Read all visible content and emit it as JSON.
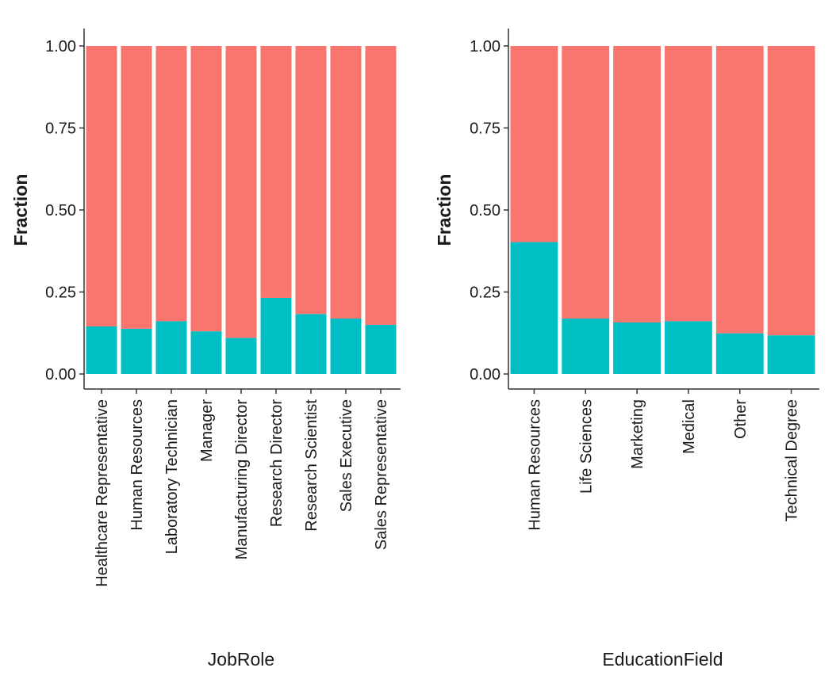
{
  "colors": {
    "series_top": "#F8766D",
    "series_bottom": "#00BFC4",
    "axis": "#333333",
    "background": "#ffffff"
  },
  "chart_data": [
    {
      "type": "bar",
      "stacked": true,
      "xlabel": "JobRole",
      "ylabel": "Fraction",
      "ylim": [
        0,
        1
      ],
      "yticks": [
        "0.00",
        "0.25",
        "0.50",
        "0.75",
        "1.00"
      ],
      "grid": false,
      "legend": "none",
      "categories": [
        "Healthcare Representative",
        "Human Resources",
        "Laboratory Technician",
        "Manager",
        "Manufacturing Director",
        "Research Director",
        "Research Scientist",
        "Sales Executive",
        "Sales Representative"
      ],
      "series": [
        {
          "values": [
            0.145,
            0.138,
            0.161,
            0.13,
            0.11,
            0.232,
            0.183,
            0.169,
            0.15
          ]
        },
        {
          "values": [
            0.855,
            0.862,
            0.839,
            0.87,
            0.89,
            0.768,
            0.817,
            0.831,
            0.85
          ]
        }
      ]
    },
    {
      "type": "bar",
      "stacked": true,
      "xlabel": "EducationField",
      "ylabel": "Fraction",
      "ylim": [
        0,
        1
      ],
      "yticks": [
        "0.00",
        "0.25",
        "0.50",
        "0.75",
        "1.00"
      ],
      "grid": false,
      "legend": "none",
      "categories": [
        "Human Resources",
        "Life Sciences",
        "Marketing",
        "Medical",
        "Other",
        "Technical Degree"
      ],
      "series": [
        {
          "values": [
            0.402,
            0.169,
            0.157,
            0.161,
            0.124,
            0.118
          ]
        },
        {
          "values": [
            0.598,
            0.831,
            0.843,
            0.839,
            0.876,
            0.882
          ]
        }
      ]
    }
  ]
}
